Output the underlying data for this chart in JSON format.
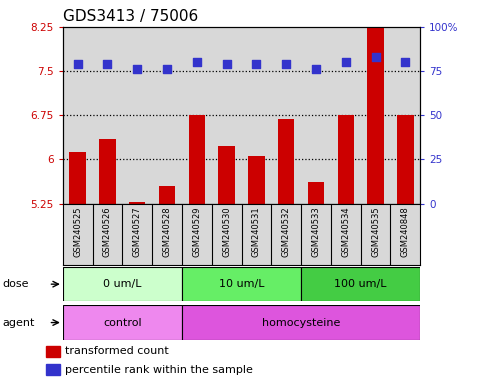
{
  "title": "GDS3413 / 75006",
  "samples": [
    "GSM240525",
    "GSM240526",
    "GSM240527",
    "GSM240528",
    "GSM240529",
    "GSM240530",
    "GSM240531",
    "GSM240532",
    "GSM240533",
    "GSM240534",
    "GSM240535",
    "GSM240848"
  ],
  "transformed_count": [
    6.12,
    6.35,
    5.28,
    5.55,
    6.75,
    6.22,
    6.05,
    6.68,
    5.62,
    6.75,
    8.32,
    6.75
  ],
  "percentile_rank": [
    79,
    79,
    76,
    76,
    80,
    79,
    79,
    79,
    76,
    80,
    83,
    80
  ],
  "ylim_left": [
    5.25,
    8.25
  ],
  "ylim_right": [
    0,
    100
  ],
  "yticks_left": [
    5.25,
    6.0,
    6.75,
    7.5,
    8.25
  ],
  "yticks_right": [
    0,
    25,
    50,
    75,
    100
  ],
  "ytick_labels_left": [
    "5.25",
    "6",
    "6.75",
    "7.5",
    "8.25"
  ],
  "ytick_labels_right": [
    "0",
    "25",
    "50",
    "75",
    "100%"
  ],
  "hlines": [
    6.0,
    6.75,
    7.5
  ],
  "bar_color": "#cc0000",
  "dot_color": "#3333cc",
  "dose_groups": [
    {
      "label": "0 um/L",
      "start": 0,
      "end": 4,
      "color": "#ccffcc"
    },
    {
      "label": "10 um/L",
      "start": 4,
      "end": 8,
      "color": "#66ee66"
    },
    {
      "label": "100 um/L",
      "start": 8,
      "end": 12,
      "color": "#44cc44"
    }
  ],
  "agent_groups": [
    {
      "label": "control",
      "start": 0,
      "end": 4,
      "color": "#ee88ee"
    },
    {
      "label": "homocysteine",
      "start": 4,
      "end": 12,
      "color": "#dd55dd"
    }
  ],
  "legend_items": [
    {
      "color": "#cc0000",
      "label": "transformed count"
    },
    {
      "color": "#3333cc",
      "label": "percentile rank within the sample"
    }
  ],
  "bar_width": 0.55,
  "dot_size": 28,
  "left_tick_color": "#cc0000",
  "right_tick_color": "#3333cc",
  "tick_fontsize": 7.5,
  "title_fontsize": 11,
  "sample_fontsize": 6.0,
  "label_row_fontsize": 8,
  "legend_fontsize": 8
}
